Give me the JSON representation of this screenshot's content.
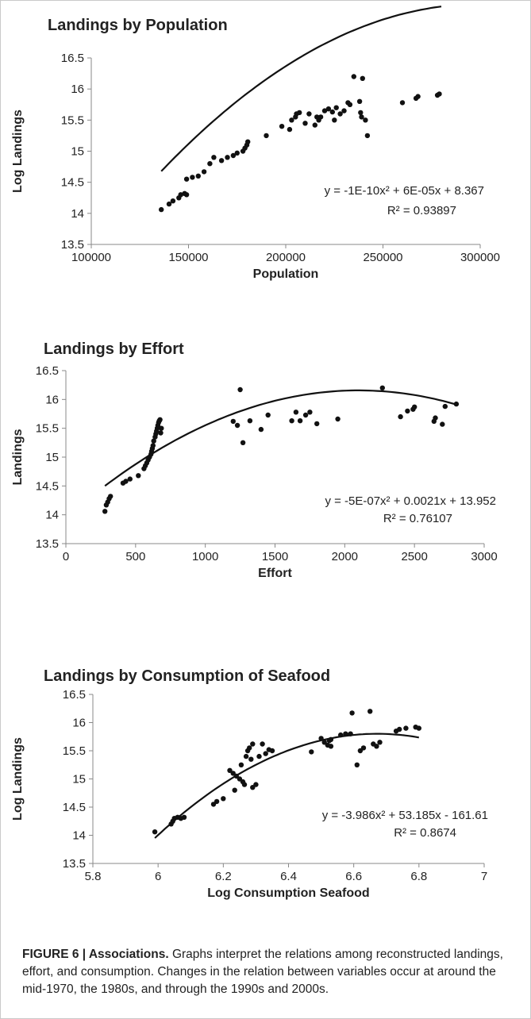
{
  "chart_data": [
    {
      "type": "scatter",
      "title": "Landings by Population",
      "xlabel": "Population",
      "ylabel": "Log Landings",
      "xlim": [
        100000,
        300000
      ],
      "ylim": [
        13.5,
        16.5
      ],
      "xticks": [
        "100000",
        "150000",
        "200000",
        "250000",
        "300000"
      ],
      "yticks": [
        "13.5",
        "14",
        "14.5",
        "15",
        "15.5",
        "16",
        "16.5"
      ],
      "grid": false,
      "trendline": {
        "type": "polynomial",
        "coefficients": [
          -1e-10,
          6e-05,
          8.367
        ],
        "x_range": [
          136000,
          280000
        ],
        "equation": "y = -1E-10x² + 6E-05x + 8.367",
        "r_squared": "R² = 0.93897"
      },
      "points": [
        [
          136000,
          14.06
        ],
        [
          140000,
          14.15
        ],
        [
          142000,
          14.2
        ],
        [
          145000,
          14.25
        ],
        [
          146000,
          14.3
        ],
        [
          148000,
          14.32
        ],
        [
          149000,
          14.3
        ],
        [
          149000,
          14.55
        ],
        [
          152000,
          14.58
        ],
        [
          155000,
          14.6
        ],
        [
          158000,
          14.67
        ],
        [
          161000,
          14.8
        ],
        [
          163000,
          14.9
        ],
        [
          167000,
          14.85
        ],
        [
          170000,
          14.9
        ],
        [
          173000,
          14.93
        ],
        [
          175000,
          14.97
        ],
        [
          178000,
          15.0
        ],
        [
          179000,
          15.05
        ],
        [
          180000,
          15.1
        ],
        [
          180500,
          15.15
        ],
        [
          190000,
          15.25
        ],
        [
          198000,
          15.4
        ],
        [
          202000,
          15.35
        ],
        [
          203000,
          15.5
        ],
        [
          205000,
          15.55
        ],
        [
          205500,
          15.6
        ],
        [
          207000,
          15.62
        ],
        [
          210000,
          15.45
        ],
        [
          212000,
          15.6
        ],
        [
          215000,
          15.42
        ],
        [
          216000,
          15.55
        ],
        [
          217000,
          15.5
        ],
        [
          218000,
          15.55
        ],
        [
          220000,
          15.65
        ],
        [
          222000,
          15.68
        ],
        [
          224000,
          15.63
        ],
        [
          225000,
          15.5
        ],
        [
          226000,
          15.7
        ],
        [
          228000,
          15.6
        ],
        [
          230000,
          15.65
        ],
        [
          232000,
          15.78
        ],
        [
          233000,
          15.75
        ],
        [
          235000,
          16.2
        ],
        [
          238000,
          15.8
        ],
        [
          238500,
          15.62
        ],
        [
          239000,
          15.55
        ],
        [
          239500,
          16.17
        ],
        [
          241000,
          15.5
        ],
        [
          242000,
          15.25
        ],
        [
          260000,
          15.78
        ],
        [
          267000,
          15.85
        ],
        [
          268000,
          15.88
        ],
        [
          278000,
          15.9
        ],
        [
          279000,
          15.92
        ]
      ]
    },
    {
      "type": "scatter",
      "title": "Landings by Effort",
      "xlabel": "Effort",
      "ylabel": "Landings",
      "xlim": [
        0,
        3000
      ],
      "ylim": [
        13.5,
        16.5
      ],
      "xticks": [
        "0",
        "500",
        "1000",
        "1500",
        "2000",
        "2500",
        "3000"
      ],
      "yticks": [
        "13.5",
        "14",
        "14.5",
        "15",
        "15.5",
        "16",
        "16.5"
      ],
      "grid": false,
      "trendline": {
        "type": "polynomial",
        "coefficients": [
          -5e-07,
          0.0021,
          13.952
        ],
        "x_range": [
          280,
          2800
        ],
        "equation": "y = -5E-07x² + 0.0021x + 13.952",
        "r_squared": "R² = 0.76107"
      },
      "points": [
        [
          280,
          14.06
        ],
        [
          290,
          14.17
        ],
        [
          300,
          14.22
        ],
        [
          310,
          14.28
        ],
        [
          320,
          14.32
        ],
        [
          410,
          14.55
        ],
        [
          430,
          14.58
        ],
        [
          460,
          14.62
        ],
        [
          520,
          14.68
        ],
        [
          560,
          14.8
        ],
        [
          570,
          14.85
        ],
        [
          580,
          14.9
        ],
        [
          590,
          14.95
        ],
        [
          600,
          15.0
        ],
        [
          610,
          15.05
        ],
        [
          615,
          15.1
        ],
        [
          620,
          15.15
        ],
        [
          625,
          15.2
        ],
        [
          630,
          15.28
        ],
        [
          640,
          15.35
        ],
        [
          645,
          15.4
        ],
        [
          650,
          15.45
        ],
        [
          655,
          15.5
        ],
        [
          660,
          15.55
        ],
        [
          665,
          15.6
        ],
        [
          670,
          15.63
        ],
        [
          675,
          15.65
        ],
        [
          680,
          15.42
        ],
        [
          685,
          15.5
        ],
        [
          1200,
          15.62
        ],
        [
          1230,
          15.55
        ],
        [
          1250,
          16.17
        ],
        [
          1270,
          15.25
        ],
        [
          1320,
          15.63
        ],
        [
          1400,
          15.48
        ],
        [
          1450,
          15.73
        ],
        [
          1620,
          15.63
        ],
        [
          1650,
          15.78
        ],
        [
          1680,
          15.63
        ],
        [
          1720,
          15.73
        ],
        [
          1750,
          15.78
        ],
        [
          1800,
          15.58
        ],
        [
          1950,
          15.66
        ],
        [
          2270,
          16.2
        ],
        [
          2400,
          15.7
        ],
        [
          2450,
          15.8
        ],
        [
          2490,
          15.83
        ],
        [
          2500,
          15.87
        ],
        [
          2640,
          15.62
        ],
        [
          2650,
          15.68
        ],
        [
          2700,
          15.57
        ],
        [
          2720,
          15.88
        ],
        [
          2800,
          15.92
        ]
      ]
    },
    {
      "type": "scatter",
      "title": "Landings by Consumption of Seafood",
      "xlabel": "Log Consumption Seafood",
      "ylabel": "Log Landings",
      "xlim": [
        5.8,
        7
      ],
      "ylim": [
        13.5,
        16.5
      ],
      "xticks": [
        "5.8",
        "6",
        "6.2",
        "6.4",
        "6.6",
        "6.8",
        "7"
      ],
      "yticks": [
        "13.5",
        "14",
        "14.5",
        "15",
        "15.5",
        "16",
        "16.5"
      ],
      "grid": false,
      "trendline": {
        "type": "polynomial",
        "coefficients": [
          -3.986,
          53.185,
          -161.61
        ],
        "x_range": [
          5.99,
          6.8
        ],
        "equation": "y = -3.986x² + 53.185x - 161.61",
        "r_squared": "R² = 0.8674"
      },
      "points": [
        [
          5.99,
          14.06
        ],
        [
          6.04,
          14.2
        ],
        [
          6.045,
          14.25
        ],
        [
          6.05,
          14.3
        ],
        [
          6.06,
          14.32
        ],
        [
          6.07,
          14.3
        ],
        [
          6.08,
          14.32
        ],
        [
          6.17,
          14.55
        ],
        [
          6.18,
          14.6
        ],
        [
          6.2,
          14.65
        ],
        [
          6.22,
          15.15
        ],
        [
          6.23,
          15.1
        ],
        [
          6.235,
          14.8
        ],
        [
          6.24,
          15.05
        ],
        [
          6.25,
          15.0
        ],
        [
          6.255,
          15.25
        ],
        [
          6.26,
          14.95
        ],
        [
          6.265,
          14.9
        ],
        [
          6.27,
          15.4
        ],
        [
          6.275,
          15.5
        ],
        [
          6.28,
          15.55
        ],
        [
          6.285,
          15.35
        ],
        [
          6.29,
          15.62
        ],
        [
          6.29,
          14.85
        ],
        [
          6.3,
          14.9
        ],
        [
          6.31,
          15.4
        ],
        [
          6.32,
          15.62
        ],
        [
          6.33,
          15.45
        ],
        [
          6.34,
          15.52
        ],
        [
          6.35,
          15.5
        ],
        [
          6.47,
          15.48
        ],
        [
          6.5,
          15.72
        ],
        [
          6.51,
          15.65
        ],
        [
          6.52,
          15.6
        ],
        [
          6.525,
          15.68
        ],
        [
          6.53,
          15.7
        ],
        [
          6.53,
          15.58
        ],
        [
          6.56,
          15.78
        ],
        [
          6.575,
          15.8
        ],
        [
          6.59,
          15.8
        ],
        [
          6.595,
          16.17
        ],
        [
          6.61,
          15.25
        ],
        [
          6.62,
          15.5
        ],
        [
          6.63,
          15.55
        ],
        [
          6.65,
          16.2
        ],
        [
          6.66,
          15.62
        ],
        [
          6.67,
          15.58
        ],
        [
          6.68,
          15.65
        ],
        [
          6.73,
          15.85
        ],
        [
          6.74,
          15.88
        ],
        [
          6.76,
          15.9
        ],
        [
          6.79,
          15.92
        ],
        [
          6.8,
          15.9
        ]
      ]
    }
  ],
  "caption": {
    "label": "FIGURE 6 | Associations.",
    "text": " Graphs interpret the relations among reconstructed landings, effort, and consumption. Changes in the relation between variables occur at around the mid-1970, the 1980s, and through the 1990s and 2000s."
  }
}
